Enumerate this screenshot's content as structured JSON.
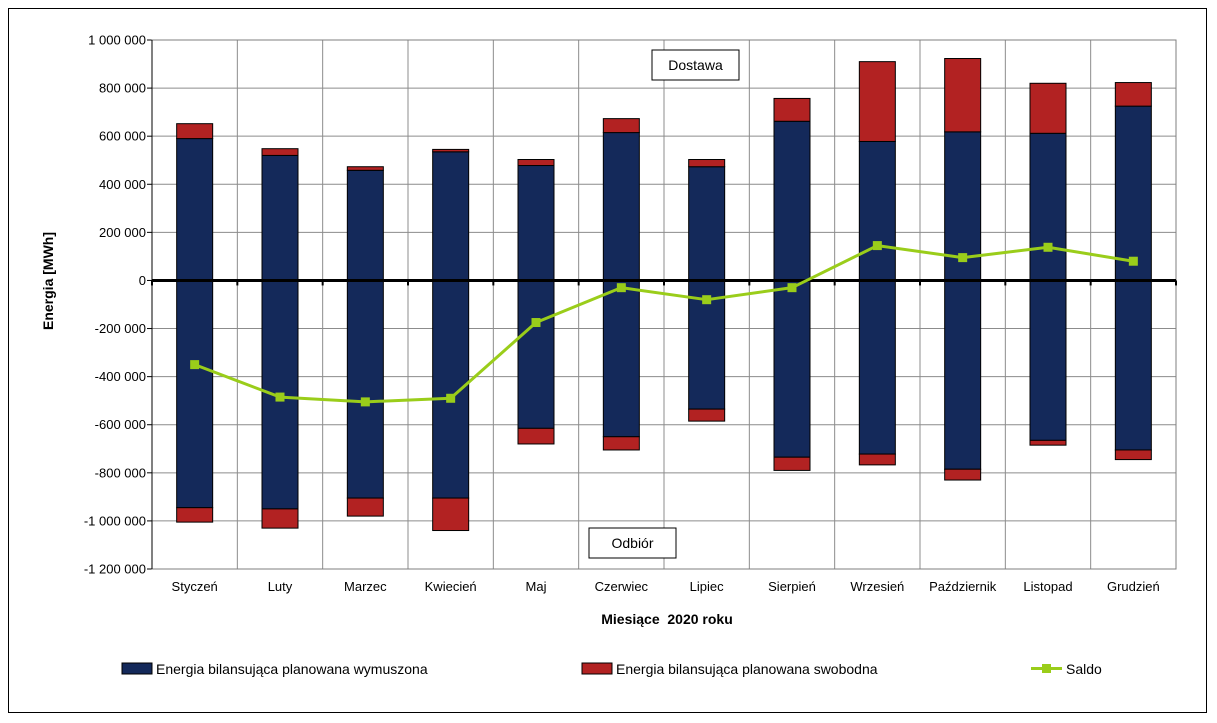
{
  "chart_data": {
    "type": "bar",
    "stacked": true,
    "categories": [
      "Styczeń",
      "Luty",
      "Marzec",
      "Kwiecień",
      "Maj",
      "Czerwiec",
      "Lipiec",
      "Sierpień",
      "Wrzesień",
      "Październik",
      "Listopad",
      "Grudzień"
    ],
    "xlabel": "Miesiące  2020 roku",
    "ylabel": "Energia [MWh]",
    "ylim": [
      -1200000,
      1000000
    ],
    "yticks": [
      1000000,
      800000,
      600000,
      400000,
      200000,
      0,
      -200000,
      -400000,
      -600000,
      -800000,
      -1000000,
      -1200000
    ],
    "ytick_labels": [
      "1 000 000",
      "800 000",
      "600 000",
      "400 000",
      "200 000",
      "0",
      "-200 000",
      "-400 000",
      "-600 000",
      "-800 000",
      "-1 000 000",
      "-1 200 000"
    ],
    "grid": true,
    "legend_position": "bottom",
    "annotations": {
      "top_box": "Dostawa",
      "bottom_box": "Odbiór"
    },
    "series": [
      {
        "name": "Energia bilansująca planowana wymuszona",
        "color": "#14295a",
        "kind": "bar",
        "positive": [
          590000,
          520000,
          458000,
          535000,
          478000,
          615000,
          473000,
          662000,
          578000,
          618000,
          612000,
          725000
        ],
        "negative": [
          -945000,
          -950000,
          -905000,
          -905000,
          -615000,
          -650000,
          -535000,
          -735000,
          -722000,
          -785000,
          -665000,
          -705000
        ]
      },
      {
        "name": "Energia bilansująca planowana swobodna",
        "color": "#b22222",
        "kind": "bar",
        "positive": [
          62000,
          28000,
          15000,
          10000,
          25000,
          58000,
          30000,
          95000,
          332000,
          305000,
          208000,
          98000
        ],
        "negative": [
          -60000,
          -80000,
          -75000,
          -135000,
          -65000,
          -55000,
          -50000,
          -55000,
          -45000,
          -45000,
          -20000,
          -40000
        ]
      },
      {
        "name": "Saldo",
        "color": "#9acd1a",
        "kind": "line",
        "values": [
          -350000,
          -485000,
          -505000,
          -490000,
          -175000,
          -30000,
          -80000,
          -30000,
          145000,
          95000,
          138000,
          80000
        ]
      }
    ]
  }
}
